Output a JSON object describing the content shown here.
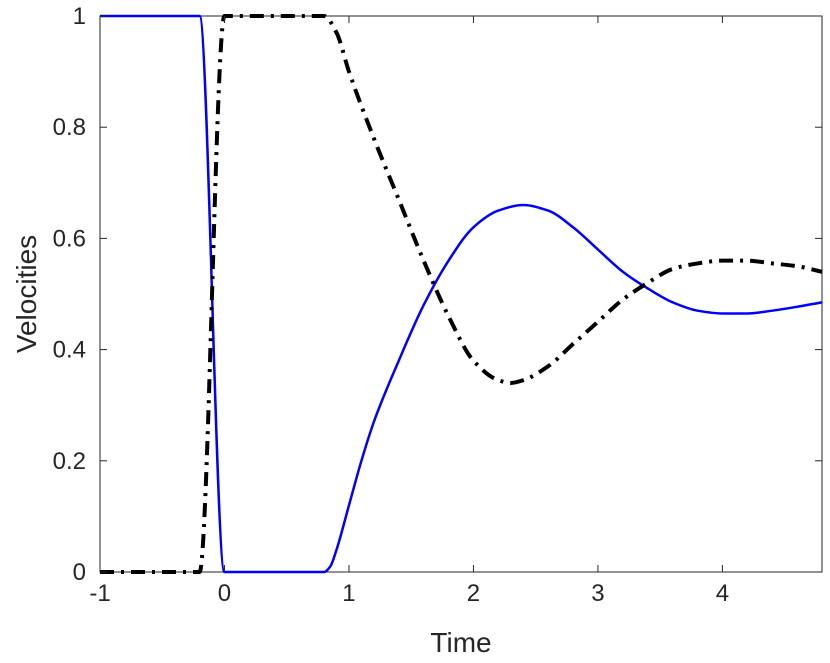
{
  "chart_data": {
    "type": "line",
    "title": "",
    "xlabel": "Time",
    "ylabel": "Velocities",
    "xlim": [
      -1,
      4.8
    ],
    "ylim": [
      0,
      1
    ],
    "xticks": [
      -1,
      0,
      1,
      2,
      3,
      4
    ],
    "xtick_labels": [
      "-1",
      "0",
      "1",
      "2",
      "3",
      "4"
    ],
    "yticks": [
      0,
      0.2,
      0.4,
      0.6,
      0.8,
      1
    ],
    "ytick_labels": [
      "0",
      "0.2",
      "0.4",
      "0.6",
      "0.8",
      "1"
    ],
    "grid": false,
    "legend": "none",
    "series": [
      {
        "style": "solid",
        "color": "#0000ff",
        "x": [
          -1,
          -0.2,
          0,
          0.8,
          0.85,
          0.9,
          1.0,
          1.1,
          1.2,
          1.4,
          1.6,
          1.8,
          2.0,
          2.2,
          2.4,
          2.6,
          2.8,
          3.0,
          3.2,
          3.4,
          3.6,
          3.8,
          4.0,
          4.2,
          4.4,
          4.6,
          4.8
        ],
        "y": [
          1,
          1,
          0,
          0,
          0.01,
          0.04,
          0.12,
          0.2,
          0.27,
          0.38,
          0.48,
          0.56,
          0.62,
          0.65,
          0.66,
          0.65,
          0.62,
          0.58,
          0.54,
          0.51,
          0.485,
          0.47,
          0.465,
          0.465,
          0.47,
          0.477,
          0.485
        ]
      },
      {
        "style": "dash-dot",
        "color": "#000000",
        "x": [
          -1,
          -0.2,
          0,
          0.8,
          0.9,
          1.0,
          1.2,
          1.4,
          1.6,
          1.8,
          2.0,
          2.2,
          2.3,
          2.4,
          2.6,
          2.8,
          3.0,
          3.2,
          3.4,
          3.6,
          3.8,
          4.0,
          4.2,
          4.4,
          4.6,
          4.8
        ],
        "y": [
          0,
          0,
          1,
          1,
          0.97,
          0.9,
          0.78,
          0.67,
          0.56,
          0.46,
          0.38,
          0.345,
          0.34,
          0.345,
          0.37,
          0.41,
          0.45,
          0.49,
          0.52,
          0.545,
          0.555,
          0.56,
          0.56,
          0.555,
          0.55,
          0.54
        ]
      }
    ]
  }
}
